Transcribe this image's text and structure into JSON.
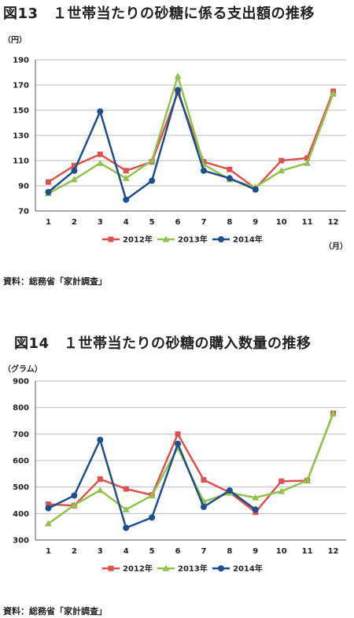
{
  "charts": [
    {
      "figure_title": "図13　１世帯当たりの砂糖に係る支出額の推移",
      "y_unit": "（円）",
      "x_unit": "（月）",
      "source": "資料：総務省「家計調査」"
    },
    {
      "figure_title": "図14　１世帯当たりの砂糖の購入数量の推移",
      "y_unit": "（グラム）",
      "x_unit": "",
      "source": "資料：総務省「家計調査」"
    }
  ],
  "chart_data": [
    {
      "type": "line",
      "title": "図13　１世帯当たりの砂糖に係る支出額の推移",
      "xlabel": "（月）",
      "ylabel": "（円）",
      "categories": [
        "1",
        "2",
        "3",
        "4",
        "5",
        "6",
        "7",
        "8",
        "9",
        "10",
        "11",
        "12"
      ],
      "ylim": [
        70,
        190
      ],
      "yticks": [
        70,
        90,
        110,
        130,
        150,
        170,
        190
      ],
      "grid": true,
      "legend_position": "bottom",
      "series": [
        {
          "name": "2012年",
          "color": "#d9534f",
          "marker": "square",
          "values": [
            93,
            106,
            115,
            102,
            109,
            164,
            109,
            103,
            88,
            110,
            112,
            165
          ]
        },
        {
          "name": "2013年",
          "color": "#92c24e",
          "marker": "triangle",
          "values": [
            84,
            95,
            108,
            96,
            110,
            177,
            107,
            95,
            89,
            102,
            108,
            163
          ]
        },
        {
          "name": "2014年",
          "color": "#1f4e8c",
          "marker": "circle",
          "values": [
            85,
            102,
            149,
            79,
            94,
            166,
            102,
            96,
            87,
            null,
            null,
            null
          ]
        }
      ]
    },
    {
      "type": "line",
      "title": "図14　１世帯当たりの砂糖の購入数量の推移",
      "xlabel": "",
      "ylabel": "（グラム）",
      "categories": [
        "1",
        "2",
        "3",
        "4",
        "5",
        "6",
        "7",
        "8",
        "9",
        "10",
        "11",
        "12"
      ],
      "ylim": [
        300,
        900
      ],
      "yticks": [
        300,
        400,
        500,
        600,
        700,
        800,
        900
      ],
      "grid": true,
      "legend_position": "bottom",
      "series": [
        {
          "name": "2012年",
          "color": "#d9534f",
          "marker": "square",
          "values": [
            435,
            430,
            530,
            493,
            470,
            700,
            527,
            480,
            405,
            522,
            524,
            778
          ]
        },
        {
          "name": "2013年",
          "color": "#92c24e",
          "marker": "triangle",
          "values": [
            362,
            432,
            488,
            415,
            468,
            648,
            445,
            478,
            460,
            484,
            525,
            777
          ]
        },
        {
          "name": "2014年",
          "color": "#1f4e8c",
          "marker": "circle",
          "values": [
            420,
            468,
            678,
            346,
            385,
            663,
            425,
            487,
            415,
            null,
            null,
            null
          ]
        }
      ]
    }
  ]
}
